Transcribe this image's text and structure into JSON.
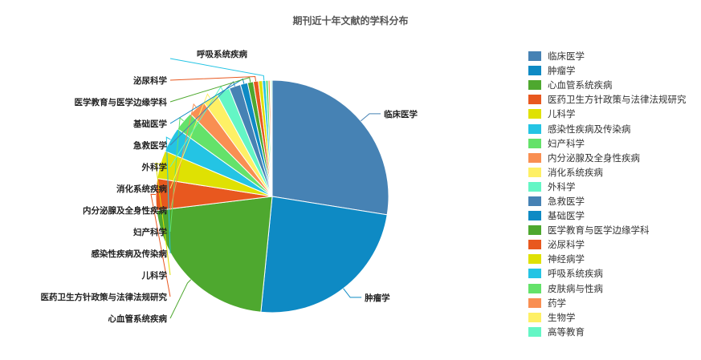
{
  "chart_data": {
    "type": "pie",
    "title": "期刊近十年文献的学科分布",
    "categories": [
      "临床医学",
      "肿瘤学",
      "心血管系统疾病",
      "医药卫生方针政策与法律法规研究",
      "儿科学",
      "感染性疾病及传染病",
      "妇产科学",
      "内分泌腺及全身性疾病",
      "消化系统疾病",
      "外科学",
      "急救医学",
      "基础医学",
      "医学教育与医学边缘学科",
      "泌尿科学",
      "神经病学",
      "呼吸系统疾病",
      "皮肤病与性病",
      "药学",
      "生物学",
      "高等教育"
    ],
    "values": [
      27.5,
      24.0,
      21.5,
      4.4,
      3.9,
      3.5,
      2.7,
      2.4,
      2.1,
      1.9,
      1.6,
      1.0,
      0.8,
      0.7,
      0.55,
      0.45,
      0.35,
      0.25,
      0.15,
      0.15
    ],
    "colors": [
      "#4682b4",
      "#0e8ac4",
      "#4ea82f",
      "#e8581f",
      "#dfe103",
      "#24c4e4",
      "#64e26a",
      "#f98f52",
      "#fef065",
      "#64f6c5",
      "#4682b4",
      "#0e8ac4",
      "#4ea82f",
      "#e8581f",
      "#dfe103",
      "#24c4e4",
      "#64e26a",
      "#f98f52",
      "#fef065",
      "#64f6c5"
    ],
    "outside_labels": [
      "临床医学",
      "肿瘤学",
      "心血管系统疾病",
      "医药卫生方针政策与法律法规研究",
      "儿科学",
      "感染性疾病及传染病",
      "妇产科学",
      "内分泌腺及全身性疾病",
      "消化系统疾病",
      "外科学",
      "急救医学",
      "基础医学",
      "医学教育与医学边缘学科",
      "泌尿科学",
      "",
      "呼吸系统疾病",
      "",
      "",
      "",
      ""
    ],
    "legend_position": "right"
  }
}
